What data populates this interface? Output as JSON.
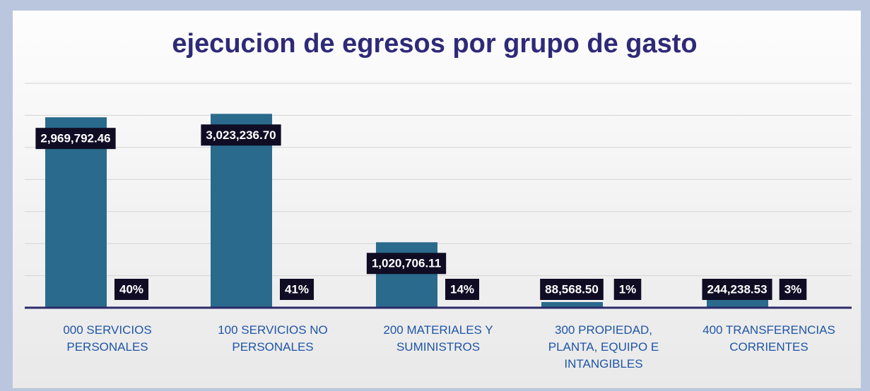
{
  "chart_data": {
    "type": "bar",
    "title": "ejecucion de egresos por grupo de gasto",
    "categories": [
      "000 SERVICIOS PERSONALES",
      "100 SERVICIOS NO PERSONALES",
      "200 MATERIALES Y SUMINISTROS",
      "300 PROPIEDAD, PLANTA, EQUIPO  E INTANGIBLES",
      "400 TRANSFERENCIAS CORRIENTES"
    ],
    "values": [
      2969792.46,
      3023236.7,
      1020706.11,
      88568.5,
      244238.53
    ],
    "value_labels": [
      "2,969,792.46",
      "3,023,236.70",
      "1,020,706.11",
      "88,568.50",
      "244,238.53"
    ],
    "percent_values": [
      40,
      41,
      14,
      1,
      3
    ],
    "percent_labels": [
      "40%",
      "41%",
      "14%",
      "1%",
      "3%"
    ],
    "color": "#2a6a8c",
    "ylim": [
      0,
      3500000
    ],
    "yticks": [
      0,
      500000,
      1000000,
      1500000,
      2000000,
      2500000,
      3000000,
      3500000
    ],
    "grid": true
  }
}
